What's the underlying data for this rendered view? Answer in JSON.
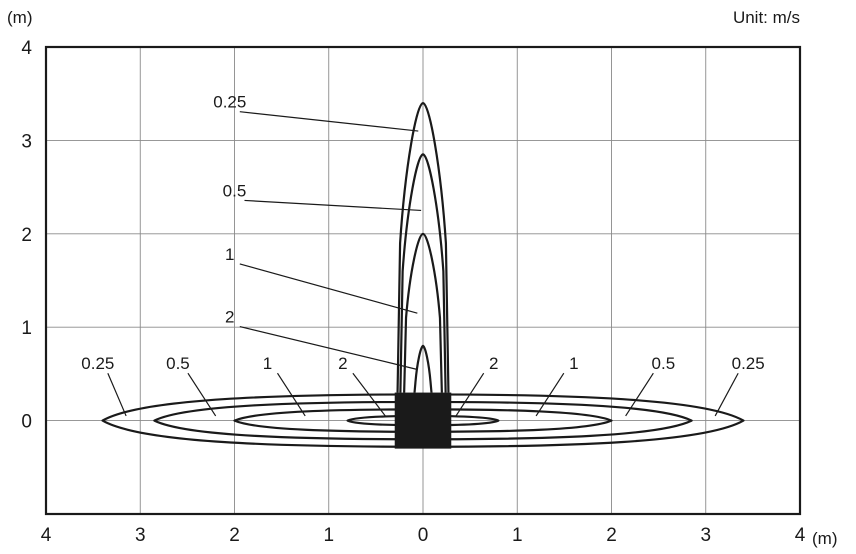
{
  "chart_data": {
    "type": "contour",
    "title": "",
    "unit_label": "Unit: m/s",
    "x_unit": "(m)",
    "y_unit": "(m)",
    "xlim": [
      -4,
      4
    ],
    "ylim": [
      -1,
      4
    ],
    "x_ticks": [
      {
        "value": -4,
        "label": "4"
      },
      {
        "value": -3,
        "label": "3"
      },
      {
        "value": -2,
        "label": "2"
      },
      {
        "value": -1,
        "label": "1"
      },
      {
        "value": 0,
        "label": "0"
      },
      {
        "value": 1,
        "label": "1"
      },
      {
        "value": 2,
        "label": "2"
      },
      {
        "value": 3,
        "label": "3"
      },
      {
        "value": 4,
        "label": "4"
      }
    ],
    "y_ticks": [
      {
        "value": 4,
        "label": "4"
      },
      {
        "value": 3,
        "label": "3"
      },
      {
        "value": 2,
        "label": "2"
      },
      {
        "value": 1,
        "label": "1"
      },
      {
        "value": 0,
        "label": "0"
      }
    ],
    "grid": true,
    "source_block": {
      "x0": -0.3,
      "x1": 0.3,
      "y0": -0.3,
      "y1": 0.3,
      "color": "#1a1a1a"
    },
    "vertical_plume": [
      {
        "speed_label": "0.25",
        "height": 3.4,
        "half_width_at_base": 0.27,
        "neck_y": 1.9
      },
      {
        "speed_label": "0.5",
        "height": 2.85,
        "half_width_at_base": 0.24,
        "neck_y": 1.6
      },
      {
        "speed_label": "1",
        "height": 2.0,
        "half_width_at_base": 0.2,
        "neck_y": 1.1
      },
      {
        "speed_label": "2",
        "height": 0.8,
        "half_width_at_base": 0.09,
        "neck_y": 0.4
      }
    ],
    "horizontal_jets": [
      {
        "speed_label": "0.25",
        "reach": 3.4,
        "half_height": 0.28
      },
      {
        "speed_label": "0.5",
        "reach": 2.85,
        "half_height": 0.2
      },
      {
        "speed_label": "1",
        "reach": 2.0,
        "half_height": 0.12
      },
      {
        "speed_label": "2",
        "reach": 0.8,
        "half_height": 0.05
      }
    ],
    "contour_labels": [
      {
        "text": "0.25",
        "label_at": [
          -2.05,
          3.35
        ],
        "leader_to": [
          -0.05,
          3.1
        ]
      },
      {
        "text": "0.5",
        "label_at": [
          -2.0,
          2.4
        ],
        "leader_to": [
          -0.02,
          2.25
        ]
      },
      {
        "text": "1",
        "label_at": [
          -2.05,
          1.72
        ],
        "leader_to": [
          -0.06,
          1.15
        ]
      },
      {
        "text": "2",
        "label_at": [
          -2.05,
          1.05
        ],
        "leader_to": [
          -0.07,
          0.55
        ]
      },
      {
        "text": "0.25",
        "label_at": [
          -3.45,
          0.55
        ],
        "leader_to": [
          -3.15,
          0.05
        ]
      },
      {
        "text": "0.5",
        "label_at": [
          -2.6,
          0.55
        ],
        "leader_to": [
          -2.2,
          0.05
        ]
      },
      {
        "text": "1",
        "label_at": [
          -1.65,
          0.55
        ],
        "leader_to": [
          -1.25,
          0.05
        ]
      },
      {
        "text": "2",
        "label_at": [
          -0.85,
          0.55
        ],
        "leader_to": [
          -0.4,
          0.05
        ]
      },
      {
        "text": "2",
        "label_at": [
          0.75,
          0.55
        ],
        "leader_to": [
          0.35,
          0.05
        ]
      },
      {
        "text": "1",
        "label_at": [
          1.6,
          0.55
        ],
        "leader_to": [
          1.2,
          0.05
        ]
      },
      {
        "text": "0.5",
        "label_at": [
          2.55,
          0.55
        ],
        "leader_to": [
          2.15,
          0.05
        ]
      },
      {
        "text": "0.25",
        "label_at": [
          3.45,
          0.55
        ],
        "leader_to": [
          3.1,
          0.05
        ]
      }
    ]
  }
}
